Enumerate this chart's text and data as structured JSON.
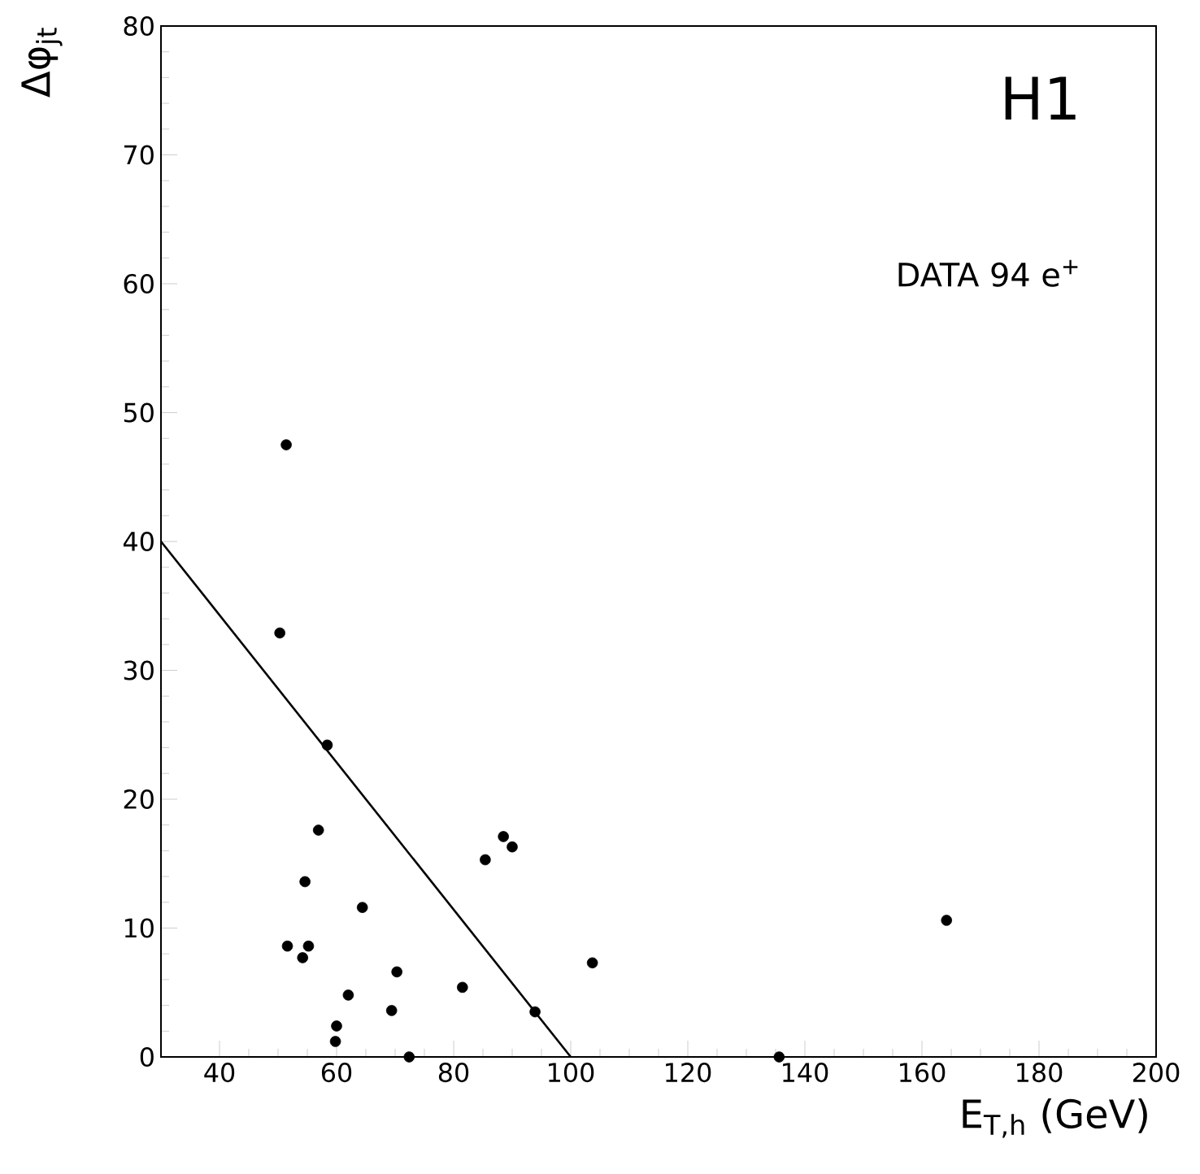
{
  "chart_data": {
    "type": "scatter",
    "xlabel": "E$_{T,h}$ (GeV)",
    "ylabel": "Δφ$_{jt}$",
    "annotations": [
      "H1",
      "DATA 94 e$^{+}$"
    ],
    "xlim": [
      30,
      200
    ],
    "ylim": [
      0,
      80
    ],
    "xticks": [
      40,
      60,
      80,
      100,
      120,
      140,
      160,
      180,
      200
    ],
    "yticks": [
      0,
      10,
      20,
      30,
      40,
      50,
      60,
      70,
      80
    ],
    "grid": false,
    "series": [
      {
        "color": "#000000",
        "marker": "circle",
        "x": [
          51.4,
          50.3,
          58.4,
          56.9,
          54.6,
          64.4,
          51.6,
          55.2,
          54.2,
          70.3,
          62.0,
          81.5,
          69.4,
          60.0,
          59.8,
          72.4,
          85.4,
          88.5,
          90.0,
          93.9,
          103.7,
          135.6,
          164.2
        ],
        "values": [
          47.5,
          32.9,
          24.2,
          17.6,
          13.6,
          11.6,
          8.6,
          8.6,
          7.7,
          6.6,
          4.8,
          5.4,
          3.6,
          2.4,
          1.2,
          0,
          15.3,
          17.1,
          16.3,
          3.5,
          7.3,
          0,
          10.6
        ]
      },
      {
        "type": "line",
        "color": "#000000",
        "line_style": "solid",
        "x": [
          30,
          100
        ],
        "values": [
          40,
          0
        ]
      }
    ]
  }
}
